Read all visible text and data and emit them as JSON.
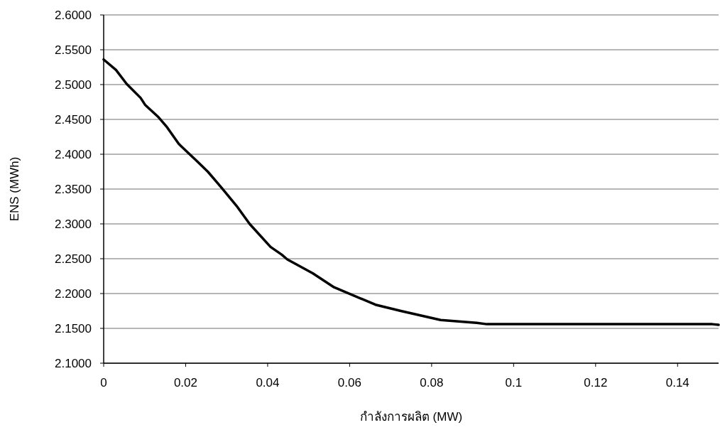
{
  "chart_data": {
    "type": "line",
    "xlabel": "กำลังการผลิต (MW)",
    "ylabel": "ENS (MWh)",
    "x": [
      0,
      0.003,
      0.0056,
      0.009,
      0.0101,
      0.0134,
      0.0153,
      0.0183,
      0.0206,
      0.0224,
      0.0254,
      0.0289,
      0.0324,
      0.0356,
      0.0407,
      0.0434,
      0.0448,
      0.051,
      0.0562,
      0.0663,
      0.0725,
      0.0822,
      0.091,
      0.0935,
      0.1485,
      0.15
    ],
    "series": [
      {
        "color": "#000000",
        "values": [
          2.536,
          2.521,
          2.501,
          2.481,
          2.471,
          2.453,
          2.44,
          2.415,
          2.402,
          2.392,
          2.375,
          2.351,
          2.326,
          2.3,
          2.267,
          2.256,
          2.249,
          2.229,
          2.209,
          2.184,
          2.175,
          2.162,
          2.158,
          2.156,
          2.156,
          2.155
        ]
      }
    ],
    "xlim": [
      0,
      0.15
    ],
    "ylim": [
      2.1,
      2.6
    ],
    "xticks": [
      0,
      0.02,
      0.04,
      0.06,
      0.08,
      0.1,
      0.12,
      0.14
    ],
    "yticks": [
      {
        "value": 2.1,
        "label": "2.1000"
      },
      {
        "value": 2.15,
        "label": "2.1500"
      },
      {
        "value": 2.2,
        "label": "2.2000"
      },
      {
        "value": 2.25,
        "label": "2.2500"
      },
      {
        "value": 2.3,
        "label": "2.3000"
      },
      {
        "value": 2.35,
        "label": "2.3500"
      },
      {
        "value": 2.4,
        "label": "2.4000"
      },
      {
        "value": 2.45,
        "label": "2.4500"
      },
      {
        "value": 2.5,
        "label": "2.5000"
      },
      {
        "value": 2.55,
        "label": "2.5500"
      },
      {
        "value": 2.6,
        "label": "2.6000"
      }
    ],
    "grid": "y",
    "line_style": "solid"
  }
}
